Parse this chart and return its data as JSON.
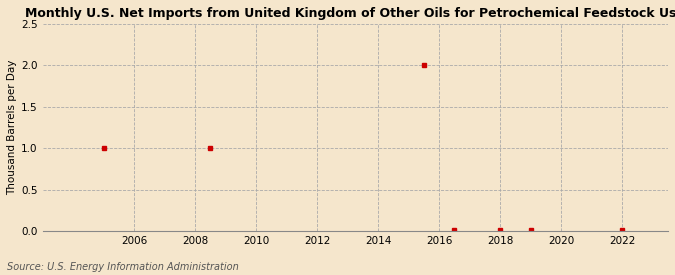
{
  "title": "Monthly U.S. Net Imports from United Kingdom of Other Oils for Petrochemical Feedstock Use",
  "ylabel": "Thousand Barrels per Day",
  "source": "Source: U.S. Energy Information Administration",
  "background_color": "#f5e6cc",
  "plot_background_color": "#f5e6cc",
  "point_color": "#cc0000",
  "point_marker": "s",
  "point_size": 3,
  "xlim": [
    2003.0,
    2023.5
  ],
  "ylim": [
    0,
    2.5
  ],
  "yticks": [
    0.0,
    0.5,
    1.0,
    1.5,
    2.0,
    2.5
  ],
  "xticks": [
    2006,
    2008,
    2010,
    2012,
    2014,
    2016,
    2018,
    2020,
    2022
  ],
  "data_x": [
    2005.0,
    2008.5,
    2015.5,
    2016.5,
    2018.0,
    2019.0,
    2022.0
  ],
  "data_y": [
    1.0,
    1.0,
    2.0,
    0.02,
    0.02,
    0.02,
    0.02
  ],
  "grid_color": "#aaaaaa",
  "grid_linestyle": "--",
  "grid_linewidth": 0.6,
  "title_fontsize": 9.0,
  "axis_fontsize": 7.5,
  "tick_fontsize": 7.5,
  "source_fontsize": 7.0
}
